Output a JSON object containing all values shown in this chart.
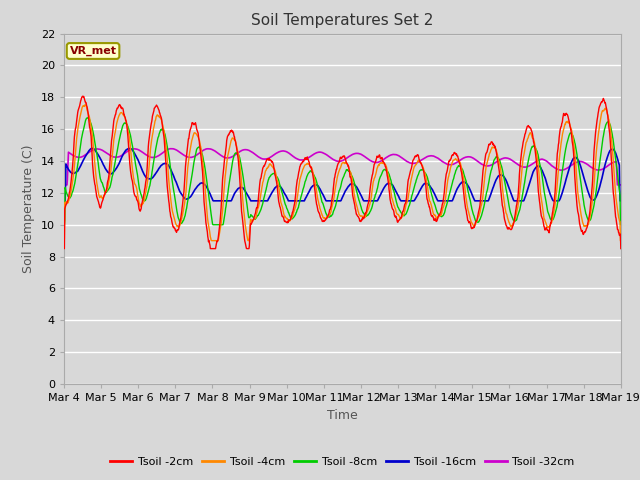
{
  "title": "Soil Temperatures Set 2",
  "xlabel": "Time",
  "ylabel": "Soil Temperature (C)",
  "ylim": [
    0,
    22
  ],
  "yticks": [
    0,
    2,
    4,
    6,
    8,
    10,
    12,
    14,
    16,
    18,
    20,
    22
  ],
  "plot_bg_color": "#d8d8d8",
  "fig_bg_color": "#d8d8d8",
  "grid_color": "#ffffff",
  "annotation_text": "VR_met",
  "annotation_box_color": "#ffffcc",
  "annotation_border_color": "#999900",
  "series_colors": {
    "Tsoil -2cm": "#ff0000",
    "Tsoil -4cm": "#ff8800",
    "Tsoil -8cm": "#00cc00",
    "Tsoil -16cm": "#0000cc",
    "Tsoil -32cm": "#cc00cc"
  },
  "tick_labels": [
    "Mar 4",
    "Mar 5",
    "Mar 6",
    "Mar 7",
    "Mar 8",
    "Mar 9",
    "Mar 10",
    "Mar 11",
    "Mar 12",
    "Mar 13",
    "Mar 14",
    "Mar 15",
    "Mar 16",
    "Mar 17",
    "Mar 18",
    "Mar 19"
  ]
}
